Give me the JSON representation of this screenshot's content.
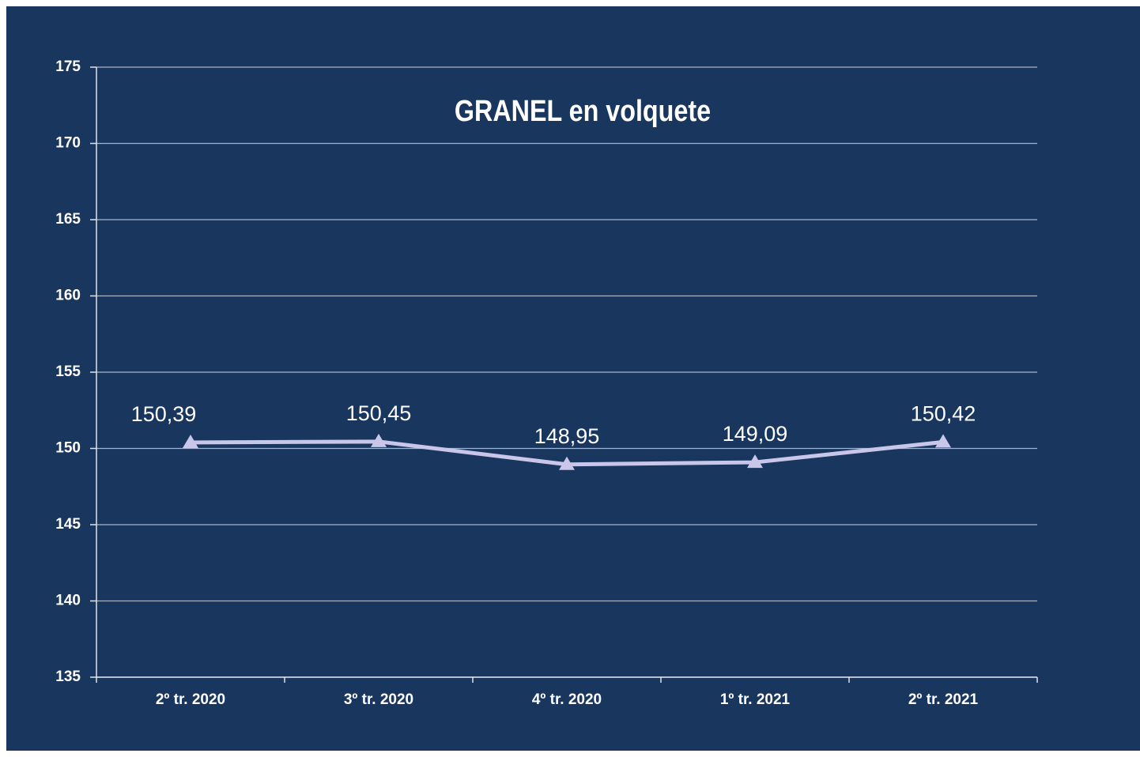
{
  "chart_data": {
    "type": "line",
    "title": "GRANEL en volquete",
    "categories": [
      "2º tr. 2020",
      "3º tr. 2020",
      "4º tr. 2020",
      "1º tr. 2021",
      "2º tr. 2021"
    ],
    "series": [
      {
        "name": "GRANEL en volquete",
        "color": "#c9c6ea",
        "values": [
          150.39,
          150.45,
          148.95,
          149.09,
          150.42
        ],
        "value_labels": [
          "150,39",
          "150,45",
          "148,95",
          "149,09",
          "150,42"
        ]
      }
    ],
    "ylim": [
      135,
      175
    ],
    "yticks": [
      135,
      140,
      145,
      150,
      155,
      160,
      165,
      170,
      175
    ],
    "grid": true
  }
}
